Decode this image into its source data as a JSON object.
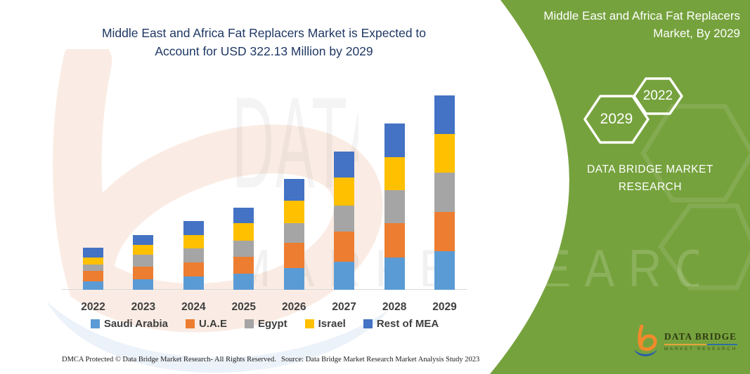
{
  "header": {
    "title_line1": "Middle East and Africa Fat Replacers Market is Expected to",
    "title_line2": "Account for USD 322.13 Million by 2029",
    "title_color": "#1F3864"
  },
  "side_panel": {
    "bg_color": "#76A23D",
    "heading_line1": "Middle East and Africa Fat Replacers",
    "heading_line2": "Market, By 2029",
    "hexagon_big_year": "2029",
    "hexagon_small_year": "2022",
    "brand_line1": "DATA BRIDGE MARKET",
    "brand_line2": "RESEARCH"
  },
  "chart_data": {
    "type": "bar",
    "stacked": true,
    "title": "Middle East and Africa Fat Replacers Market is Expected to Account for USD 322.13 Million by 2029",
    "value_unit": "USD Million",
    "categories": [
      "2022",
      "2023",
      "2024",
      "2025",
      "2026",
      "2027",
      "2028",
      "2029"
    ],
    "series": [
      {
        "name": "Saudi Arabia",
        "color": "#5B9BD5",
        "values": [
          14,
          17,
          22,
          27,
          36,
          46,
          54,
          64
        ]
      },
      {
        "name": "U.A.E",
        "color": "#ED7D31",
        "values": [
          18,
          21,
          23,
          28,
          42,
          51,
          56,
          65.5
        ]
      },
      {
        "name": "Egypt",
        "color": "#A5A5A5",
        "values": [
          10,
          20,
          24,
          27,
          33,
          43,
          55,
          65
        ]
      },
      {
        "name": "Israel",
        "color": "#FFC000",
        "values": [
          11,
          17,
          22,
          29,
          37,
          46,
          55,
          64
        ]
      },
      {
        "name": "Rest of MEA",
        "color": "#4472C4",
        "values": [
          17,
          16,
          23,
          25,
          36,
          43,
          56,
          63.63
        ]
      }
    ],
    "totals": [
      70,
      91,
      114,
      136,
      184,
      229,
      276,
      322.13
    ],
    "ylim": [
      0,
      340
    ],
    "grid": false,
    "legend_position": "bottom",
    "axis_label_color": "#3F3F3F"
  },
  "watermark": {
    "big_word": "DATA BRI",
    "row_word_left": "MARKET RE",
    "row_word_right": "SEARCH"
  },
  "logo": {
    "name": "DATA BRIDGE",
    "subtitle": "MARKET RESEARCH"
  },
  "footer": {
    "left": "DMCA Protected © Data Bridge Market Research-  All Rights Reserved.",
    "right": "Source: Data Bridge Market Research  Market Analysis Study 2023"
  }
}
